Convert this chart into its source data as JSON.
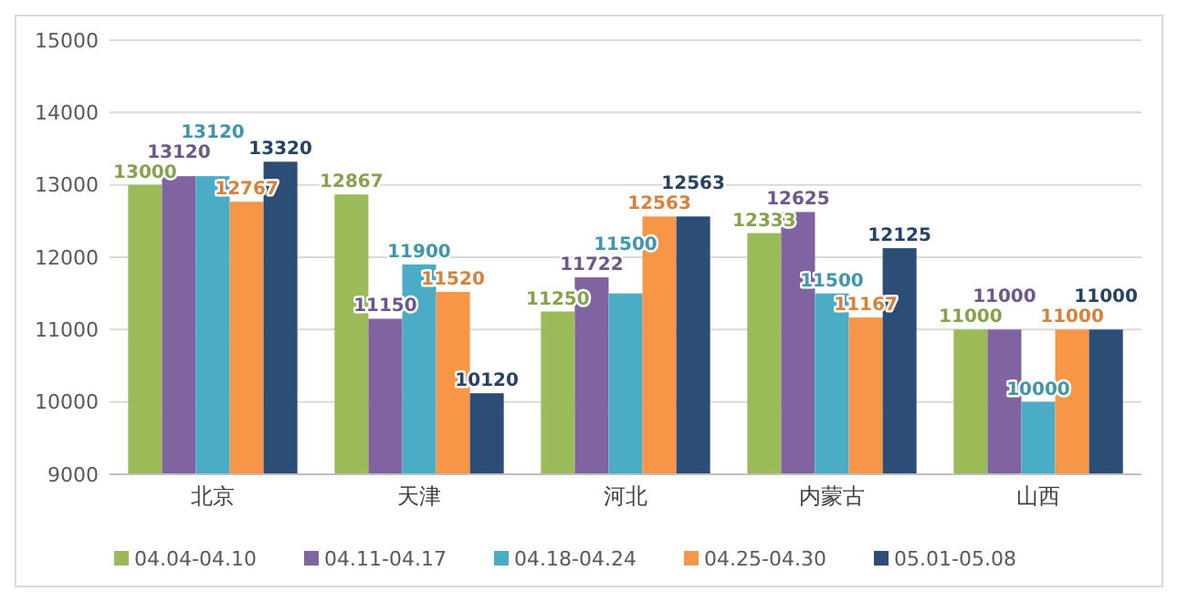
{
  "chart_data": {
    "type": "bar",
    "categories": [
      "北京",
      "天津",
      "河北",
      "内蒙古",
      "山西"
    ],
    "series": [
      {
        "name": "04.04-04.10",
        "color": "#9bbb59",
        "values": [
          13000,
          12867,
          11250,
          12333,
          11000
        ]
      },
      {
        "name": "04.11-04.17",
        "color": "#8064a2",
        "values": [
          13120,
          11150,
          11722,
          12625,
          11000
        ]
      },
      {
        "name": "04.18-04.24",
        "color": "#4bacc6",
        "values": [
          13120,
          11900,
          11500,
          11500,
          10000
        ]
      },
      {
        "name": "04.25-04.30",
        "color": "#f79646",
        "values": [
          12767,
          11520,
          12563,
          11167,
          11000
        ]
      },
      {
        "name": "05.01-05.08",
        "color": "#2c4d75",
        "values": [
          13320,
          10120,
          12563,
          12125,
          11000
        ]
      }
    ],
    "ylim": [
      9000,
      15000
    ],
    "yticks": [
      9000,
      10000,
      11000,
      12000,
      13000,
      14000,
      15000
    ],
    "grid": "y",
    "legend": "bottom",
    "data_labels": true
  }
}
